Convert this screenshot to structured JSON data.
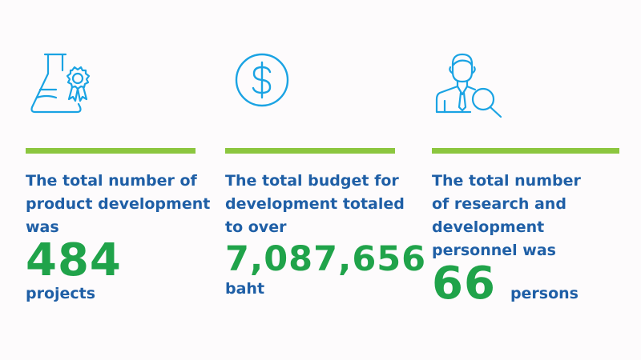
{
  "accent_colors": {
    "text": "#1f5fa6",
    "number": "#20a34a",
    "divider": "#8cc63f",
    "icon": "#1aa3e3"
  },
  "stats": [
    {
      "icon": "flask-award-icon",
      "lines": [
        "The total number of",
        "product development",
        "was"
      ],
      "value": "484",
      "unit": "projects"
    },
    {
      "icon": "dollar-coin-icon",
      "lines": [
        "The total budget for",
        "development totaled",
        "to over"
      ],
      "value": "7,087,656",
      "unit": "baht"
    },
    {
      "icon": "researcher-magnifier-icon",
      "lines": [
        "The total number",
        "of research and",
        "development",
        "personnel was"
      ],
      "value": "66",
      "unit": "persons"
    }
  ]
}
